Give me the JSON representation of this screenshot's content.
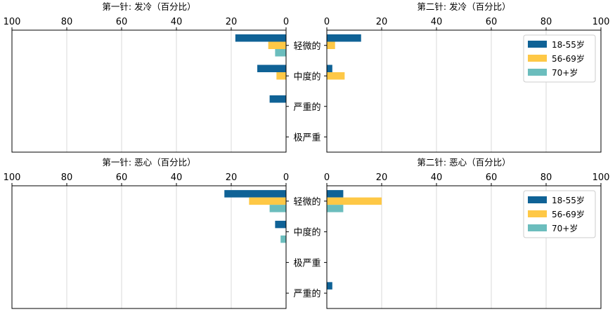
{
  "colors": {
    "s0": "#0f6296",
    "s1": "#fec846",
    "s2": "#6bbdbd",
    "grid": "#d9d9d9",
    "axis": "#000000"
  },
  "chart_data": [
    {
      "type": "bar",
      "orientation": "horizontal",
      "x_direction": "reversed",
      "title": "第一针: 发冷（百分比）",
      "categories": [
        "轻微的",
        "中度的",
        "严重的",
        "极严重"
      ],
      "xlim": [
        0,
        100
      ],
      "xticks": [
        "0",
        "20",
        "40",
        "60",
        "80",
        "100"
      ],
      "grid": true,
      "legend": null,
      "series": [
        {
          "name": "18-55岁",
          "values": [
            18.5,
            10.5,
            6.0,
            0
          ]
        },
        {
          "name": "56-69岁",
          "values": [
            6.5,
            3.5,
            0,
            0
          ]
        },
        {
          "name": "70+岁",
          "values": [
            4.0,
            0,
            0,
            0
          ]
        }
      ]
    },
    {
      "type": "bar",
      "orientation": "horizontal",
      "x_direction": "normal",
      "title": "第二针: 发冷（百分比）",
      "categories": [
        "轻微的",
        "中度的",
        "严重的",
        "极严重"
      ],
      "xlim": [
        0,
        100
      ],
      "xticks": [
        "0",
        "20",
        "40",
        "60",
        "80",
        "100"
      ],
      "grid": true,
      "legend": "top-right",
      "series": [
        {
          "name": "18-55岁",
          "values": [
            12.5,
            2.0,
            0,
            0
          ]
        },
        {
          "name": "56-69岁",
          "values": [
            3.0,
            6.5,
            0,
            0
          ]
        },
        {
          "name": "70+岁",
          "values": [
            0,
            0,
            0,
            0
          ]
        }
      ]
    },
    {
      "type": "bar",
      "orientation": "horizontal",
      "x_direction": "reversed",
      "title": "第一针: 恶心（百分比）",
      "categories": [
        "轻微的",
        "中度的",
        "极严重",
        "严重的"
      ],
      "xlim": [
        0,
        100
      ],
      "xticks": [
        "0",
        "20",
        "40",
        "60",
        "80",
        "100"
      ],
      "grid": true,
      "legend": null,
      "series": [
        {
          "name": "18-55岁",
          "values": [
            22.5,
            4.0,
            0,
            0
          ]
        },
        {
          "name": "56-69岁",
          "values": [
            13.5,
            0,
            0,
            0
          ]
        },
        {
          "name": "70+岁",
          "values": [
            6.0,
            2.0,
            0,
            0
          ]
        }
      ]
    },
    {
      "type": "bar",
      "orientation": "horizontal",
      "x_direction": "normal",
      "title": "第二针: 恶心（百分比）",
      "categories": [
        "轻微的",
        "中度的",
        "极严重",
        "严重的"
      ],
      "xlim": [
        0,
        100
      ],
      "xticks": [
        "0",
        "20",
        "40",
        "60",
        "80",
        "100"
      ],
      "grid": true,
      "legend": "top-right",
      "series": [
        {
          "name": "18-55岁",
          "values": [
            6.0,
            0,
            0,
            2.0
          ]
        },
        {
          "name": "56-69岁",
          "values": [
            20.0,
            0,
            0,
            0
          ]
        },
        {
          "name": "70+岁",
          "values": [
            6.0,
            0,
            0,
            0
          ]
        }
      ]
    }
  ]
}
